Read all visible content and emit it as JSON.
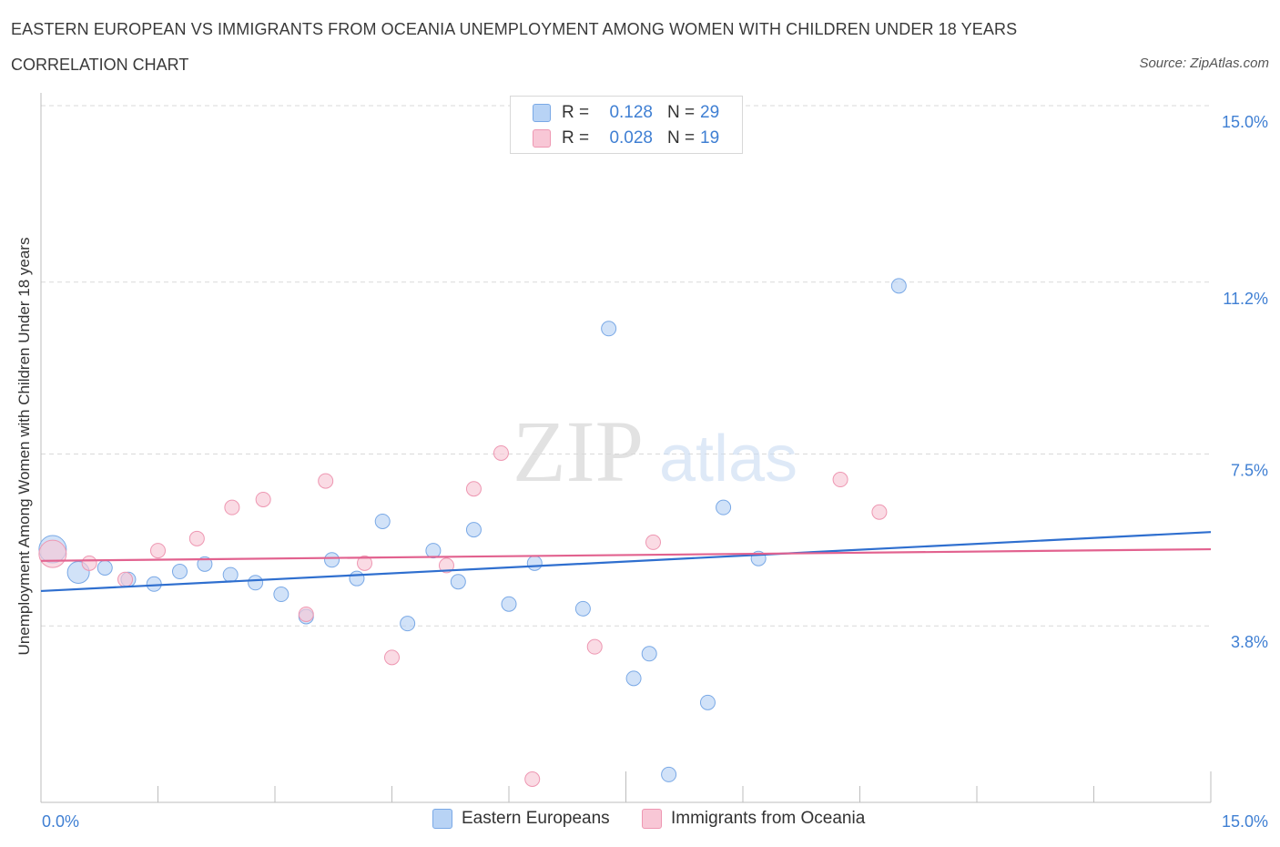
{
  "header": {
    "title": "EASTERN EUROPEAN VS IMMIGRANTS FROM OCEANIA UNEMPLOYMENT AMONG WOMEN WITH CHILDREN UNDER 18 YEARS",
    "subtitle": "CORRELATION CHART",
    "source": "Source: ZipAtlas.com"
  },
  "watermark": {
    "zip": "ZIP",
    "atlas": "atlas"
  },
  "legend_box": {
    "rows": [
      {
        "r_label": "R =",
        "r_value": "0.128",
        "n_label": "N =",
        "n_value": "29"
      },
      {
        "r_label": "R =",
        "r_value": "0.028",
        "n_label": "N =",
        "n_value": "19"
      }
    ]
  },
  "bottom_legend": {
    "items": [
      "Eastern Europeans",
      "Immigrants from Oceania"
    ]
  },
  "colors": {
    "series1_fill": "#b8d3f5",
    "series1_stroke": "#7aa9e6",
    "series1_line": "#2f6fcf",
    "series2_fill": "#f8c7d6",
    "series2_stroke": "#ee97b2",
    "series2_line": "#e2628f",
    "tick_label": "#3f7fd3",
    "grid": "#d9d9d9"
  },
  "chart_data": {
    "type": "scatter",
    "title": "EASTERN EUROPEAN VS IMMIGRANTS FROM OCEANIA UNEMPLOYMENT AMONG WOMEN WITH CHILDREN UNDER 18 YEARS",
    "ylabel": "Unemployment Among Women with Children Under 18 years",
    "xlabel": "",
    "xlim": [
      0,
      15
    ],
    "ylim": [
      0,
      15
    ],
    "x_tick_labels": [
      "0.0%",
      "15.0%"
    ],
    "y_ticks": [
      3.8,
      7.5,
      11.2,
      15.0
    ],
    "y_tick_labels": [
      "3.8%",
      "7.5%",
      "11.2%",
      "15.0%"
    ],
    "grid": true,
    "legend_position": "bottom",
    "series": [
      {
        "name": "Eastern Europeans",
        "r": 0.128,
        "n": 29,
        "trend": {
          "x0": 0.0,
          "y0": 4.55,
          "x1": 15.0,
          "y1": 5.82
        },
        "points": [
          {
            "x": 0.15,
            "y": 5.45,
            "s": 3
          },
          {
            "x": 0.48,
            "y": 4.95,
            "s": 2
          },
          {
            "x": 0.82,
            "y": 5.05,
            "s": 1
          },
          {
            "x": 1.12,
            "y": 4.8,
            "s": 1
          },
          {
            "x": 1.45,
            "y": 4.7,
            "s": 1
          },
          {
            "x": 1.78,
            "y": 4.97,
            "s": 1
          },
          {
            "x": 2.1,
            "y": 5.13,
            "s": 1
          },
          {
            "x": 2.43,
            "y": 4.9,
            "s": 1
          },
          {
            "x": 2.75,
            "y": 4.73,
            "s": 1
          },
          {
            "x": 3.08,
            "y": 4.48,
            "s": 1
          },
          {
            "x": 3.4,
            "y": 4.0,
            "s": 1
          },
          {
            "x": 3.73,
            "y": 5.22,
            "s": 1
          },
          {
            "x": 4.05,
            "y": 4.82,
            "s": 1
          },
          {
            "x": 4.38,
            "y": 6.05,
            "s": 1
          },
          {
            "x": 4.7,
            "y": 3.85,
            "s": 1
          },
          {
            "x": 5.03,
            "y": 5.42,
            "s": 1
          },
          {
            "x": 5.35,
            "y": 4.75,
            "s": 1
          },
          {
            "x": 5.55,
            "y": 5.87,
            "s": 1
          },
          {
            "x": 6.0,
            "y": 4.27,
            "s": 1
          },
          {
            "x": 6.33,
            "y": 5.15,
            "s": 1
          },
          {
            "x": 6.95,
            "y": 4.17,
            "s": 1
          },
          {
            "x": 7.28,
            "y": 10.2,
            "s": 1
          },
          {
            "x": 7.6,
            "y": 2.67,
            "s": 1
          },
          {
            "x": 7.8,
            "y": 3.2,
            "s": 1
          },
          {
            "x": 8.05,
            "y": 0.6,
            "s": 1
          },
          {
            "x": 8.55,
            "y": 2.15,
            "s": 1
          },
          {
            "x": 8.75,
            "y": 6.35,
            "s": 1
          },
          {
            "x": 9.2,
            "y": 5.25,
            "s": 1
          },
          {
            "x": 11.0,
            "y": 11.12,
            "s": 1
          }
        ]
      },
      {
        "name": "Immigrants from Oceania",
        "r": 0.028,
        "n": 19,
        "trend": {
          "x0": 0.0,
          "y0": 5.2,
          "x1": 15.0,
          "y1": 5.45
        },
        "points": [
          {
            "x": 0.15,
            "y": 5.35,
            "s": 3
          },
          {
            "x": 0.62,
            "y": 5.15,
            "s": 1
          },
          {
            "x": 1.08,
            "y": 4.8,
            "s": 1
          },
          {
            "x": 1.5,
            "y": 5.42,
            "s": 1
          },
          {
            "x": 2.0,
            "y": 5.68,
            "s": 1
          },
          {
            "x": 2.45,
            "y": 6.35,
            "s": 1
          },
          {
            "x": 2.85,
            "y": 6.52,
            "s": 1
          },
          {
            "x": 3.4,
            "y": 4.05,
            "s": 1
          },
          {
            "x": 3.65,
            "y": 6.92,
            "s": 1
          },
          {
            "x": 4.15,
            "y": 5.15,
            "s": 1
          },
          {
            "x": 4.5,
            "y": 3.12,
            "s": 1
          },
          {
            "x": 5.2,
            "y": 5.1,
            "s": 1
          },
          {
            "x": 5.55,
            "y": 6.75,
            "s": 1
          },
          {
            "x": 5.9,
            "y": 7.52,
            "s": 1
          },
          {
            "x": 6.3,
            "y": 0.5,
            "s": 1
          },
          {
            "x": 7.1,
            "y": 3.35,
            "s": 1
          },
          {
            "x": 7.85,
            "y": 5.6,
            "s": 1
          },
          {
            "x": 10.25,
            "y": 6.95,
            "s": 1
          },
          {
            "x": 10.75,
            "y": 6.25,
            "s": 1
          }
        ]
      }
    ]
  }
}
